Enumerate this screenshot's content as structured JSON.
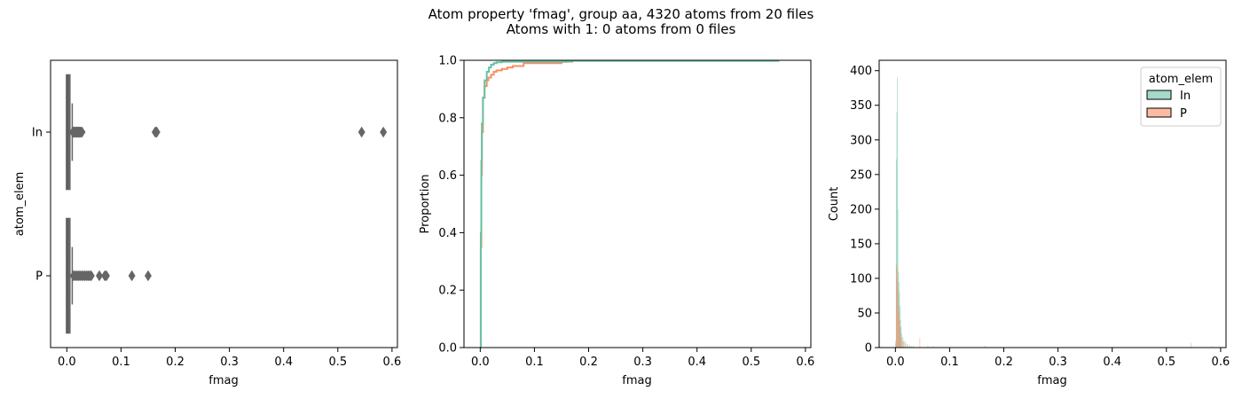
{
  "figure": {
    "title_line1": "Atom property 'fmag', group aa, 4320 atoms from 20 files",
    "title_line2": "Atoms with 1: 0 atoms from 0 files"
  },
  "colors": {
    "In": "#66c2a5",
    "P": "#fc8d62",
    "box": "#666666"
  },
  "chart_data": [
    {
      "type": "box",
      "xlabel": "fmag",
      "ylabel": "atom_elem",
      "xlim": [
        -0.03,
        0.61
      ],
      "xticks": [
        "0.0",
        "0.1",
        "0.2",
        "0.3",
        "0.4",
        "0.5",
        "0.6"
      ],
      "categories": [
        "In",
        "P"
      ],
      "series": [
        {
          "name": "In",
          "q1": 0.0005,
          "median": 0.001,
          "q3": 0.0045,
          "whisker_low": 0.0,
          "whisker_high": 0.01,
          "outliers": [
            0.011,
            0.012,
            0.013,
            0.014,
            0.015,
            0.016,
            0.017,
            0.018,
            0.019,
            0.02,
            0.021,
            0.022,
            0.023,
            0.024,
            0.025,
            0.026,
            0.028,
            0.163,
            0.165,
            0.166,
            0.544,
            0.584
          ]
        },
        {
          "name": "P",
          "q1": 0.0005,
          "median": 0.001,
          "q3": 0.0045,
          "whisker_low": 0.0,
          "whisker_high": 0.01,
          "outliers": [
            0.012,
            0.015,
            0.018,
            0.021,
            0.024,
            0.027,
            0.03,
            0.033,
            0.036,
            0.039,
            0.042,
            0.045,
            0.06,
            0.07,
            0.073,
            0.12,
            0.15
          ]
        }
      ]
    },
    {
      "type": "line",
      "xlabel": "fmag",
      "ylabel": "Proportion",
      "xlim": [
        -0.03,
        0.61
      ],
      "ylim": [
        0,
        1
      ],
      "xticks": [
        "0.0",
        "0.1",
        "0.2",
        "0.3",
        "0.4",
        "0.5",
        "0.6"
      ],
      "yticks": [
        "0.0",
        "0.2",
        "0.4",
        "0.6",
        "0.8",
        "1.0"
      ],
      "series": [
        {
          "name": "P",
          "x": [
            0.0,
            0.001,
            0.002,
            0.003,
            0.005,
            0.008,
            0.012,
            0.015,
            0.02,
            0.025,
            0.03,
            0.04,
            0.05,
            0.06,
            0.08,
            0.15,
            0.17
          ],
          "y": [
            0.0,
            0.35,
            0.6,
            0.75,
            0.87,
            0.91,
            0.93,
            0.94,
            0.95,
            0.96,
            0.965,
            0.97,
            0.975,
            0.98,
            0.99,
            0.995,
            1.0
          ]
        },
        {
          "name": "In",
          "x": [
            0.0,
            0.001,
            0.002,
            0.003,
            0.005,
            0.008,
            0.012,
            0.016,
            0.02,
            0.025,
            0.03,
            0.04,
            0.16,
            0.17,
            0.55
          ],
          "y": [
            0.0,
            0.4,
            0.65,
            0.78,
            0.87,
            0.93,
            0.96,
            0.975,
            0.985,
            0.99,
            0.993,
            0.995,
            0.996,
            0.998,
            1.0
          ]
        }
      ]
    },
    {
      "type": "bar",
      "xlabel": "fmag",
      "ylabel": "Count",
      "xlim": [
        -0.03,
        0.61
      ],
      "ylim": [
        0,
        415
      ],
      "xticks": [
        "0.0",
        "0.1",
        "0.2",
        "0.3",
        "0.4",
        "0.5",
        "0.6"
      ],
      "yticks": [
        "0",
        "50",
        "100",
        "150",
        "200",
        "250",
        "300",
        "350",
        "400"
      ],
      "legend_title": "atom_elem",
      "legend_location": "upper right",
      "series": [
        {
          "name": "In",
          "x": [
            0.0005,
            0.0015,
            0.0025,
            0.0035,
            0.0045,
            0.0055,
            0.0065,
            0.0075,
            0.0085,
            0.0095,
            0.0105,
            0.012,
            0.014,
            0.016,
            0.018,
            0.021,
            0.025,
            0.03,
            0.165,
            0.545,
            0.584
          ],
          "y": [
            10,
            272,
            340,
            390,
            200,
            110,
            95,
            80,
            60,
            40,
            30,
            20,
            15,
            10,
            8,
            5,
            3,
            2,
            3,
            7,
            2
          ]
        },
        {
          "name": "P",
          "x": [
            0.0005,
            0.0015,
            0.0025,
            0.0035,
            0.0045,
            0.0055,
            0.0065,
            0.0075,
            0.0085,
            0.0095,
            0.011,
            0.013,
            0.015,
            0.018,
            0.022,
            0.027,
            0.033,
            0.045,
            0.06,
            0.07,
            0.12,
            0.15
          ],
          "y": [
            5,
            115,
            120,
            100,
            85,
            60,
            50,
            40,
            30,
            20,
            15,
            10,
            8,
            6,
            5,
            4,
            3,
            14,
            3,
            2,
            1,
            1
          ]
        }
      ]
    }
  ]
}
